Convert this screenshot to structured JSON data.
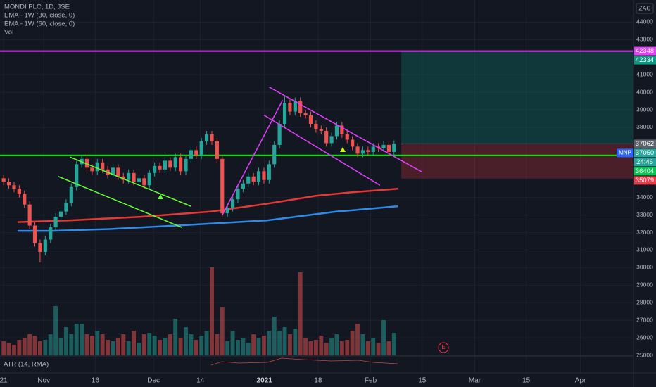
{
  "chart_data": {
    "type": "candlestick",
    "title": "MONDI PLC, 1D, JSE",
    "indicators": [
      "Vol"
    ],
    "oscillator": "ATR (14, RMA)",
    "currency": "ZAC",
    "up_color": "#26a69a",
    "down_color": "#ef5350",
    "xlim": [
      -0.7,
      121
    ],
    "ylim": [
      24000,
      45260
    ],
    "yticks": [
      25000,
      26000,
      27000,
      28000,
      29000,
      30000,
      31000,
      32000,
      33000,
      34000,
      38000,
      39000,
      40000,
      41000,
      43000,
      44000
    ],
    "xticks": [
      {
        "value": 0,
        "label": "21"
      },
      {
        "value": 7.7,
        "label": "Nov"
      },
      {
        "value": 17.6,
        "label": "16"
      },
      {
        "value": 28.8,
        "label": "Dec"
      },
      {
        "value": 37.8,
        "label": "14"
      },
      {
        "value": 50.1,
        "label": "2021"
      },
      {
        "value": 60.4,
        "label": "18"
      },
      {
        "value": 70.5,
        "label": "Feb"
      },
      {
        "value": 80.4,
        "label": "15"
      },
      {
        "value": 90.5,
        "label": "Mar"
      },
      {
        "value": 100.4,
        "label": "15"
      },
      {
        "value": 110.8,
        "label": "Apr"
      }
    ],
    "grid": true,
    "open": [
      35100,
      34900,
      34700,
      34500,
      34200,
      33600,
      32400,
      31400,
      30900,
      31600,
      32300,
      32900,
      33200,
      33700,
      34600,
      35900,
      36200,
      35700,
      35500,
      36000,
      35600,
      35300,
      35700,
      35200,
      35000,
      35400,
      34900,
      35100,
      34700,
      35400,
      35800,
      35600,
      36100,
      35700,
      36300,
      35500,
      36200,
      36700,
      36400,
      37200,
      37600,
      37200,
      36200,
      33100,
      33400,
      33900,
      34500,
      34800,
      35200,
      34900,
      35500,
      35000,
      35900,
      37000,
      38200,
      39400,
      38900,
      39500,
      38800,
      38700,
      38200,
      37900,
      37800,
      37100,
      37500,
      38100,
      37600,
      37300,
      36900,
      36500,
      36700,
      36600,
      36900,
      36800,
      37000,
      36600
    ],
    "high": [
      35300,
      35100,
      34900,
      34700,
      34400,
      33800,
      32600,
      31600,
      31800,
      32500,
      33100,
      33400,
      33900,
      34800,
      36100,
      36400,
      36400,
      35900,
      36200,
      36200,
      35800,
      35900,
      35900,
      35400,
      35600,
      35600,
      35300,
      35300,
      35600,
      36000,
      36000,
      36300,
      36300,
      36500,
      36500,
      36400,
      36900,
      36900,
      37400,
      37800,
      37800,
      37400,
      36400,
      33600,
      34100,
      34700,
      35000,
      35400,
      35400,
      35700,
      35700,
      36100,
      37200,
      38400,
      39800,
      39600,
      39700,
      39700,
      39000,
      38900,
      38400,
      38100,
      38000,
      37700,
      38300,
      38300,
      37800,
      37500,
      37100,
      36900,
      36900,
      37100,
      37100,
      37200,
      37200,
      37262
    ],
    "low": [
      34700,
      34500,
      34300,
      34000,
      33400,
      32200,
      31200,
      30300,
      30700,
      31400,
      32100,
      32700,
      33000,
      33500,
      34400,
      35700,
      35500,
      35300,
      35300,
      35400,
      35100,
      35100,
      35000,
      34800,
      34800,
      34700,
      34700,
      34500,
      34500,
      35200,
      35400,
      35400,
      35500,
      35500,
      35300,
      35300,
      36000,
      36200,
      36200,
      37000,
      37000,
      36000,
      32900,
      32900,
      33200,
      33700,
      34300,
      34600,
      34700,
      34700,
      34800,
      34800,
      35700,
      36800,
      38000,
      38700,
      38700,
      38600,
      38500,
      38000,
      37700,
      37600,
      36900,
      36900,
      37300,
      37400,
      37100,
      36700,
      36300,
      36300,
      36400,
      36400,
      36600,
      36600,
      36400,
      36400
    ],
    "close": [
      34900,
      34700,
      34500,
      34200,
      33600,
      32400,
      31400,
      30900,
      31600,
      32300,
      32900,
      33200,
      33700,
      34600,
      35900,
      36200,
      35700,
      35500,
      36000,
      35600,
      35300,
      35700,
      35200,
      35000,
      35400,
      34900,
      35100,
      34700,
      35400,
      35800,
      35600,
      36100,
      35700,
      36300,
      35500,
      36200,
      36700,
      36400,
      37200,
      37600,
      37200,
      36200,
      33100,
      33400,
      33900,
      34500,
      34800,
      35200,
      34900,
      35500,
      35000,
      35900,
      37000,
      38200,
      39400,
      38900,
      39500,
      38800,
      38700,
      38200,
      37900,
      37800,
      37100,
      37500,
      38100,
      37600,
      37300,
      36900,
      36500,
      36700,
      36600,
      36900,
      36800,
      37000,
      36600,
      37062
    ],
    "volume": [
      20,
      18,
      15,
      22,
      25,
      30,
      28,
      20,
      22,
      30,
      70,
      25,
      40,
      30,
      45,
      45,
      30,
      28,
      35,
      30,
      22,
      20,
      25,
      30,
      20,
      35,
      18,
      30,
      32,
      28,
      22,
      25,
      30,
      52,
      25,
      40,
      30,
      22,
      28,
      35,
      125,
      30,
      68,
      20,
      35,
      22,
      25,
      18,
      30,
      25,
      28,
      35,
      55,
      35,
      40,
      30,
      38,
      118,
      25,
      20,
      22,
      28,
      18,
      25,
      30,
      20,
      22,
      35,
      45,
      30,
      20,
      25,
      18,
      50,
      20,
      32
    ],
    "series": [
      {
        "name": "EMA - 1W (30, close, 0)",
        "color": "#e53935",
        "x": [
          2.7,
          12.8,
          26.3,
          39.9,
          50.7,
          60,
          66.9,
          75.7
        ],
        "values": [
          32600,
          32700,
          32900,
          33200,
          33650,
          34100,
          34300,
          34500
        ]
      },
      {
        "name": "EMA - 1W (60, close, 0)",
        "color": "#2f8be6",
        "x": [
          2.7,
          9.4,
          20,
          33,
          50.7,
          64,
          70,
          75.7
        ],
        "values": [
          32100,
          32100,
          32200,
          32400,
          32700,
          33200,
          33350,
          33500
        ]
      }
    ],
    "hlines": [
      {
        "value": 42348,
        "color": "#e040fb"
      },
      {
        "value": 36404,
        "color": "#00e600"
      }
    ],
    "trendlines": [
      {
        "color": "#66ff33",
        "x": [
          12.8,
          36
        ],
        "values": [
          36300,
          33500
        ]
      },
      {
        "color": "#66ff33",
        "x": [
          10.5,
          34.2
        ],
        "values": [
          35200,
          32300
        ]
      },
      {
        "color": "#e040fb",
        "x": [
          42,
          53.6
        ],
        "values": [
          33000,
          39550
        ]
      },
      {
        "color": "#e040fb",
        "x": [
          51,
          80.4
        ],
        "values": [
          40300,
          35450
        ]
      },
      {
        "color": "#e040fb",
        "x": [
          50,
          72.3
        ],
        "values": [
          38700,
          34700
        ]
      }
    ],
    "position": {
      "x_start": 76.4,
      "target": 42334,
      "entry": 37062,
      "stop": 35079
    },
    "price_tags": [
      {
        "value": 42348,
        "color": "#e040fb"
      },
      {
        "value": 42334,
        "color": "#089981"
      },
      {
        "value": 37062,
        "color": "#5d606b"
      },
      {
        "prefix": "MNP",
        "value": 37050,
        "color": "#26a69a",
        "countdown": "24:46"
      },
      {
        "value": 36404,
        "color": "#00c853"
      },
      {
        "value": 35079,
        "color": "#f23645"
      }
    ]
  }
}
